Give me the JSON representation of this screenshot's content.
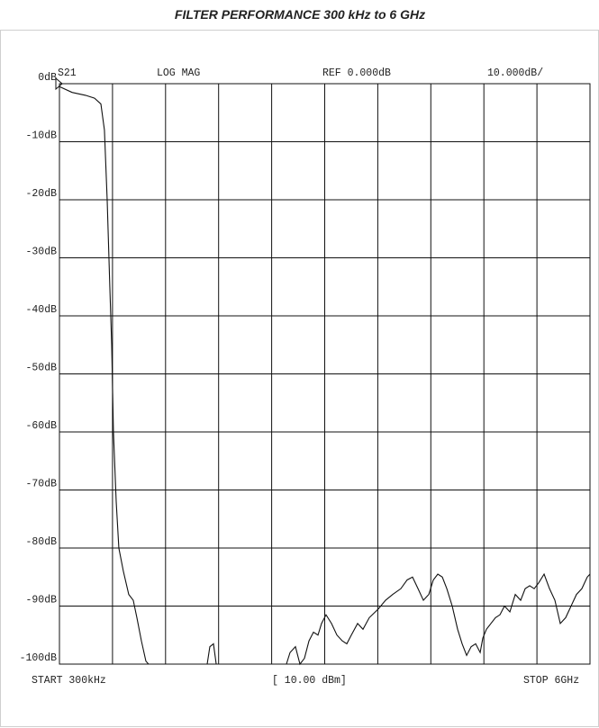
{
  "chart_data": {
    "type": "line",
    "title": "FILTER PERFORMANCE 300 kHz to 6 GHz",
    "channel": "S21",
    "format": "LOG MAG",
    "reference": "REF 0.000dB",
    "scale": "10.000dB/",
    "x_start_label": "START 300kHz",
    "power_label": "[ 10.00 dBm]",
    "x_stop_label": "STOP 6GHz",
    "xlim": [
      0.0003,
      6
    ],
    "x_divisions": 10,
    "ylim": [
      -100,
      0
    ],
    "yticks": [
      {
        "value": 0,
        "label": "0dB"
      },
      {
        "value": -10,
        "label": "-10dB"
      },
      {
        "value": -20,
        "label": "-20dB"
      },
      {
        "value": -30,
        "label": "-30dB"
      },
      {
        "value": -40,
        "label": "-40dB"
      },
      {
        "value": -50,
        "label": "-50dB"
      },
      {
        "value": -60,
        "label": "-60dB"
      },
      {
        "value": -70,
        "label": "-70dB"
      },
      {
        "value": -80,
        "label": "-80dB"
      },
      {
        "value": -90,
        "label": "-90dB"
      },
      {
        "value": -100,
        "label": "-100dB"
      }
    ],
    "grid": true,
    "color": "#111111",
    "x": [
      0.0003,
      0.143,
      0.295,
      0.397,
      0.469,
      0.509,
      0.54,
      0.57,
      0.591,
      0.611,
      0.642,
      0.672,
      0.723,
      0.784,
      0.835,
      0.876,
      0.927,
      0.978,
      1.008,
      1.671,
      1.701,
      1.742,
      1.773,
      2.567,
      2.608,
      2.669,
      2.72,
      2.771,
      2.822,
      2.873,
      2.924,
      2.964,
      3.015,
      3.077,
      3.138,
      3.199,
      3.25,
      3.301,
      3.372,
      3.433,
      3.504,
      3.606,
      3.688,
      3.769,
      3.861,
      3.932,
      3.993,
      4.055,
      4.116,
      4.177,
      4.228,
      4.279,
      4.33,
      4.381,
      4.442,
      4.503,
      4.554,
      4.605,
      4.656,
      4.707,
      4.758,
      4.788,
      4.829,
      4.88,
      4.931,
      4.982,
      5.033,
      5.094,
      5.155,
      5.216,
      5.267,
      5.318,
      5.369,
      5.42,
      5.481,
      5.542,
      5.603,
      5.664,
      5.725,
      5.786,
      5.847,
      5.908,
      5.969,
      6
    ],
    "values": [
      -0.5,
      -1.5,
      -2,
      -2.5,
      -3.5,
      -8,
      -20,
      -35,
      -45,
      -60,
      -72,
      -80,
      -84,
      -88,
      -89,
      -92,
      -96,
      -99.5,
      -100,
      -100,
      -97,
      -96.5,
      -100,
      -100,
      -98,
      -97,
      -100,
      -99,
      -96,
      -94.5,
      -95,
      -93,
      -91.5,
      -93,
      -95,
      -96,
      -96.5,
      -95,
      -93,
      -94,
      -92,
      -90.5,
      -89,
      -88,
      -87,
      -85.5,
      -85,
      -87,
      -89,
      -88,
      -85.5,
      -84.5,
      -85,
      -87,
      -90,
      -94,
      -96.5,
      -98.5,
      -97,
      -96.5,
      -98,
      -95.5,
      -94,
      -93,
      -92,
      -91.5,
      -90,
      -91,
      -88,
      -89,
      -87,
      -86.5,
      -87,
      -86,
      -84.5,
      -87,
      -89,
      -93,
      -92,
      -90,
      -88,
      -87,
      -85,
      -84.5
    ]
  }
}
